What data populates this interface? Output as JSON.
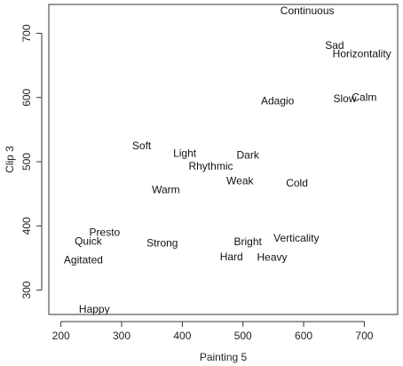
{
  "chart_data": {
    "type": "scatter",
    "title": "",
    "xlabel": "Painting 5",
    "ylabel": "Clip 3",
    "xlim": [
      180,
      755
    ],
    "ylim": [
      262,
      745
    ],
    "xticks": [
      200,
      300,
      400,
      500,
      600,
      700
    ],
    "yticks": [
      300,
      400,
      500,
      600,
      700
    ],
    "grid": false,
    "points": [
      {
        "label": "Continuous",
        "x": 606,
        "y": 734
      },
      {
        "label": "Sad",
        "x": 651,
        "y": 680
      },
      {
        "label": "Horizontality",
        "x": 696,
        "y": 667
      },
      {
        "label": "Calm",
        "x": 700,
        "y": 599
      },
      {
        "label": "Slow",
        "x": 668,
        "y": 597
      },
      {
        "label": "Adagio",
        "x": 557,
        "y": 594
      },
      {
        "label": "Soft",
        "x": 333,
        "y": 524
      },
      {
        "label": "Light",
        "x": 404,
        "y": 512
      },
      {
        "label": "Dark",
        "x": 508,
        "y": 509
      },
      {
        "label": "Rhythmic",
        "x": 447,
        "y": 492
      },
      {
        "label": "Weak",
        "x": 495,
        "y": 469
      },
      {
        "label": "Cold",
        "x": 589,
        "y": 466
      },
      {
        "label": "Warm",
        "x": 373,
        "y": 455
      },
      {
        "label": "Presto",
        "x": 272,
        "y": 389
      },
      {
        "label": "Quick",
        "x": 245,
        "y": 375
      },
      {
        "label": "Strong",
        "x": 367,
        "y": 372
      },
      {
        "label": "Bright",
        "x": 508,
        "y": 374
      },
      {
        "label": "Verticality",
        "x": 588,
        "y": 380
      },
      {
        "label": "Hard",
        "x": 481,
        "y": 351
      },
      {
        "label": "Heavy",
        "x": 548,
        "y": 350
      },
      {
        "label": "Agitated",
        "x": 237,
        "y": 346
      },
      {
        "label": "Happy",
        "x": 255,
        "y": 269
      }
    ]
  }
}
